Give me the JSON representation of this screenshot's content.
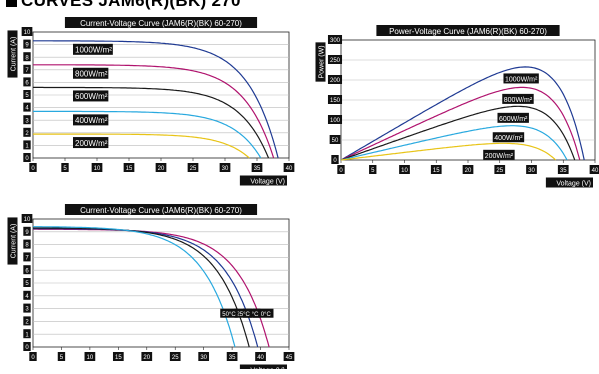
{
  "header": {
    "title": "CURVES JAM6(R)(BK) 270"
  },
  "chart_data": [
    {
      "type": "line",
      "title": "Current-Voltage Curve (JAM6(R)(BK) 60-270)",
      "xlabel": "Voltage (V)",
      "ylabel": "Current (A)",
      "xlim": [
        0,
        40
      ],
      "ylim": [
        0,
        10
      ],
      "xticks": [
        "0",
        "5",
        "10",
        "15",
        "20",
        "25",
        "30",
        "35",
        "40"
      ],
      "yticks": [
        "0",
        "1",
        "2",
        "3",
        "4",
        "5",
        "6",
        "7",
        "8",
        "9",
        "10"
      ],
      "grid": true,
      "series": [
        {
          "name": "1000W/m²",
          "color": "#1f3a93",
          "isc": 9.3,
          "voc": 38.3,
          "vk": 31.5,
          "b": 1.45
        },
        {
          "name": "800W/m²",
          "color": "#b0136e",
          "isc": 7.4,
          "voc": 37.6,
          "vk": 30.9,
          "b": 1.45
        },
        {
          "name": "600W/m²",
          "color": "#1a1a1a",
          "isc": 5.6,
          "voc": 36.8,
          "vk": 30.2,
          "b": 1.45
        },
        {
          "name": "400W/m²",
          "color": "#29a9df",
          "isc": 3.7,
          "voc": 35.6,
          "vk": 29.2,
          "b": 1.45
        },
        {
          "name": "200W/m²",
          "color": "#e8c417",
          "isc": 1.9,
          "voc": 33.8,
          "vk": 27.7,
          "b": 1.45
        }
      ]
    },
    {
      "type": "line",
      "title": "Power-Voltage Curve (JAM6(R)(BK) 60-270)",
      "xlabel": "Voltage (V)",
      "ylabel": "Power (W)",
      "xlim": [
        0,
        40
      ],
      "ylim": [
        0,
        300
      ],
      "xticks": [
        "0",
        "5",
        "10",
        "15",
        "20",
        "25",
        "30",
        "35",
        "40"
      ],
      "yticks": [
        "0",
        "50",
        "100",
        "150",
        "200",
        "250",
        "300"
      ],
      "grid": true,
      "series": [
        {
          "name": "1000W/m²",
          "color": "#1f3a93",
          "isc": 9.3,
          "voc": 38.3,
          "vk": 31.5,
          "b": 1.45
        },
        {
          "name": "800W/m²",
          "color": "#b0136e",
          "isc": 7.4,
          "voc": 37.6,
          "vk": 30.9,
          "b": 1.45
        },
        {
          "name": "600W/m²",
          "color": "#1a1a1a",
          "isc": 5.6,
          "voc": 36.8,
          "vk": 30.2,
          "b": 1.45
        },
        {
          "name": "400W/m²",
          "color": "#29a9df",
          "isc": 3.7,
          "voc": 35.6,
          "vk": 29.2,
          "b": 1.45
        },
        {
          "name": "200W/m²",
          "color": "#e8c417",
          "isc": 1.9,
          "voc": 33.8,
          "vk": 27.7,
          "b": 1.45
        }
      ]
    },
    {
      "type": "line",
      "title": "Current-Voltage Curve (JAM6(R)(BK) 60-270)",
      "xlabel": "Voltage (V)",
      "ylabel": "Current (A)",
      "xlim": [
        0,
        45
      ],
      "ylim": [
        0,
        10
      ],
      "xticks": [
        "0",
        "5",
        "10",
        "15",
        "20",
        "25",
        "30",
        "35",
        "40",
        "45"
      ],
      "yticks": [
        "0",
        "1",
        "2",
        "3",
        "4",
        "5",
        "6",
        "7",
        "8",
        "9",
        "10"
      ],
      "grid": true,
      "series": [
        {
          "name": "-10°C",
          "color": "#b0136e",
          "isc": 9.2,
          "voc": 41.5,
          "vk": 34.0,
          "b": 1.35
        },
        {
          "name": "10°C",
          "color": "#1f3a93",
          "isc": 9.25,
          "voc": 39.5,
          "vk": 32.0,
          "b": 1.35
        },
        {
          "name": "25°C",
          "color": "#1a1a1a",
          "isc": 9.3,
          "voc": 38.0,
          "vk": 30.5,
          "b": 1.35
        },
        {
          "name": "50°C",
          "color": "#29a9df",
          "isc": 9.4,
          "voc": 35.5,
          "vk": 28.0,
          "b": 1.35
        }
      ]
    }
  ]
}
